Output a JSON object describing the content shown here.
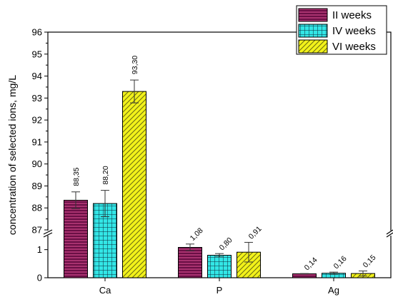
{
  "chart_data": {
    "type": "bar",
    "categories": [
      "Ca",
      "P",
      "Ag"
    ],
    "ylabel": "concentration of selected ions, mg/L",
    "xlabel": "",
    "axis_break": true,
    "y_lower_range": [
      0,
      1.5
    ],
    "y_upper_range": [
      87,
      96
    ],
    "y_ticks": [
      0,
      1,
      87,
      88,
      89,
      90,
      91,
      92,
      93,
      94,
      95,
      96
    ],
    "legend_position": "top-right",
    "series": [
      {
        "name": "II weeks",
        "color": "#8b1a5c",
        "pattern": "horizontal-stripes",
        "values": [
          88.35,
          1.08,
          0.14
        ],
        "errors": [
          0.38,
          0.12,
          0.01
        ],
        "labels": [
          "88,35",
          "1,08",
          "0,14"
        ]
      },
      {
        "name": "IV weeks",
        "color": "#33e6e6",
        "pattern": "grid",
        "values": [
          88.2,
          0.8,
          0.16
        ],
        "errors": [
          0.6,
          0.06,
          0.04
        ],
        "labels": [
          "88,20",
          "0,80",
          "0,16"
        ]
      },
      {
        "name": "VI weeks",
        "color": "#f2f21a",
        "pattern": "diagonal-hatch",
        "values": [
          93.3,
          0.91,
          0.15
        ],
        "errors": [
          0.52,
          0.35,
          0.09
        ],
        "labels": [
          "93,30",
          "0,91",
          "0,15"
        ]
      }
    ]
  }
}
